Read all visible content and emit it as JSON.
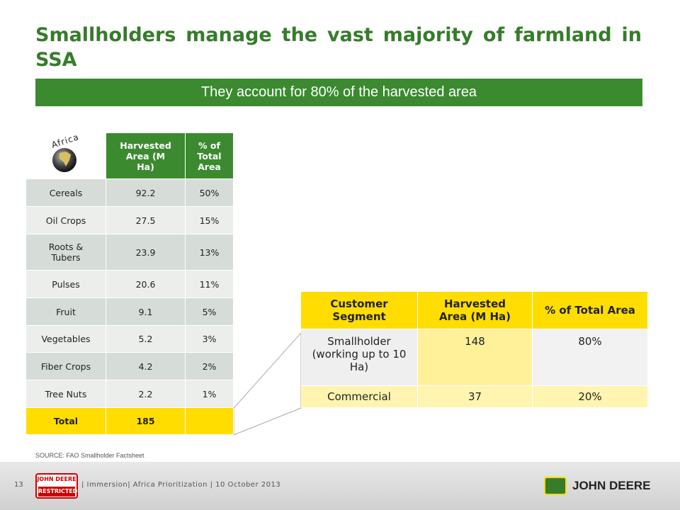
{
  "title": "Smallholders manage the vast majority of farmland in SSA",
  "banner": "They account for 80% of the harvested area",
  "icon_label": "Africa",
  "table1": {
    "headers": [
      "Harvested Area (M Ha)",
      "% of Total Area"
    ],
    "rows": [
      [
        "Cereals",
        "92.2",
        "50%"
      ],
      [
        "Oil Crops",
        "27.5",
        "15%"
      ],
      [
        "Roots & Tubers",
        "23.9",
        "13%"
      ],
      [
        "Pulses",
        "20.6",
        "11%"
      ],
      [
        "Fruit",
        "9.1",
        "5%"
      ],
      [
        "Vegetables",
        "5.2",
        "3%"
      ],
      [
        "Fiber Crops",
        "4.2",
        "2%"
      ],
      [
        "Tree Nuts",
        "2.2",
        "1%"
      ]
    ],
    "total": {
      "label": "Total",
      "area": "185"
    }
  },
  "table2": {
    "headers": [
      "Customer Segment",
      "Harvested Area (M Ha)",
      "% of Total Area"
    ],
    "rows": [
      [
        "Smallholder (working up to 10 Ha)",
        "148",
        "80%"
      ],
      [
        "Commercial",
        "37",
        "20%"
      ]
    ]
  },
  "source": "SOURCE: FAO Smallholder Factsheet",
  "footer": {
    "page": "13",
    "badge_top": "JOHN DEERE",
    "badge_bottom": "RESTRICTED",
    "text": "| Immersion| Africa Prioritization | 10 October 2013",
    "brand": "JOHN DEERE"
  }
}
